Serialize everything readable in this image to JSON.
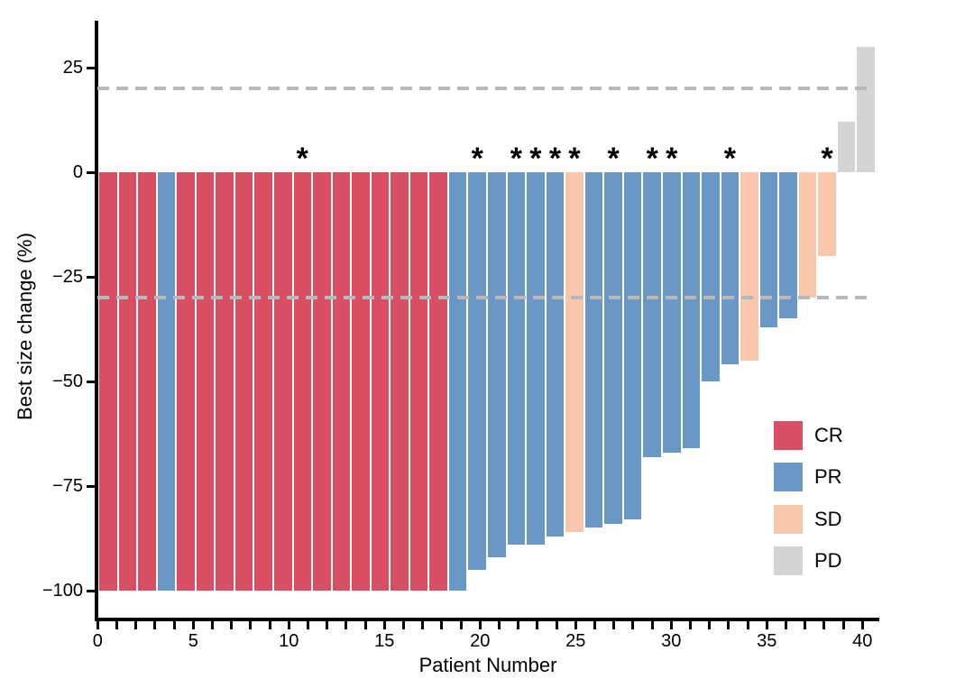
{
  "figure": {
    "background_color": "#ffffff",
    "text_color": "#000000"
  },
  "chart_data": {
    "type": "bar",
    "variant": "waterfall",
    "title": "",
    "xlabel": "Patient Number",
    "ylabel": "Best size change (%)",
    "xlim": [
      0,
      40.8
    ],
    "ylim": [
      -107,
      36
    ],
    "grid": false,
    "x_tick_values": [
      0,
      5,
      10,
      15,
      20,
      25,
      30,
      35,
      40
    ],
    "x_tick_labels": [
      "0",
      "5",
      "10",
      "15",
      "20",
      "25",
      "30",
      "35",
      "40"
    ],
    "x_minor_tick_step": 1,
    "y_tick_values": [
      25,
      0,
      -25,
      -50,
      -75,
      -100
    ],
    "y_tick_labels": [
      "25",
      "0",
      "−25",
      "−50",
      "−75",
      "−100"
    ],
    "reference_lines": [
      {
        "name": "upper",
        "y": 20,
        "style": "dashed",
        "color": "#b8b8b8"
      },
      {
        "name": "lower",
        "y": -30,
        "style": "dashed",
        "color": "#b8b8b8"
      }
    ],
    "legend": {
      "position": "right-middle",
      "entries": [
        {
          "label": "CR",
          "color": "#d84e62"
        },
        {
          "label": "PR",
          "color": "#6997c6"
        },
        {
          "label": "SD",
          "color": "#f8c7ab"
        },
        {
          "label": "PD",
          "color": "#d4d4d4"
        }
      ]
    },
    "annotation_symbol": "*",
    "starred_patients": [
      11,
      20,
      22,
      23,
      24,
      25,
      27,
      29,
      30,
      33,
      38
    ],
    "patients": [
      {
        "patient": 1,
        "value": -100,
        "response": "CR",
        "starred": false
      },
      {
        "patient": 2,
        "value": -100,
        "response": "CR",
        "starred": false
      },
      {
        "patient": 3,
        "value": -100,
        "response": "CR",
        "starred": false
      },
      {
        "patient": 4,
        "value": -100,
        "response": "PR",
        "starred": false
      },
      {
        "patient": 5,
        "value": -100,
        "response": "CR",
        "starred": false
      },
      {
        "patient": 6,
        "value": -100,
        "response": "CR",
        "starred": false
      },
      {
        "patient": 7,
        "value": -100,
        "response": "CR",
        "starred": false
      },
      {
        "patient": 8,
        "value": -100,
        "response": "CR",
        "starred": false
      },
      {
        "patient": 9,
        "value": -100,
        "response": "CR",
        "starred": false
      },
      {
        "patient": 10,
        "value": -100,
        "response": "CR",
        "starred": false
      },
      {
        "patient": 11,
        "value": -100,
        "response": "CR",
        "starred": true
      },
      {
        "patient": 12,
        "value": -100,
        "response": "CR",
        "starred": false
      },
      {
        "patient": 13,
        "value": -100,
        "response": "CR",
        "starred": false
      },
      {
        "patient": 14,
        "value": -100,
        "response": "CR",
        "starred": false
      },
      {
        "patient": 15,
        "value": -100,
        "response": "CR",
        "starred": false
      },
      {
        "patient": 16,
        "value": -100,
        "response": "CR",
        "starred": false
      },
      {
        "patient": 17,
        "value": -100,
        "response": "CR",
        "starred": false
      },
      {
        "patient": 18,
        "value": -100,
        "response": "CR",
        "starred": false
      },
      {
        "patient": 19,
        "value": -100,
        "response": "PR",
        "starred": false
      },
      {
        "patient": 20,
        "value": -95,
        "response": "PR",
        "starred": true
      },
      {
        "patient": 21,
        "value": -92,
        "response": "PR",
        "starred": false
      },
      {
        "patient": 22,
        "value": -89,
        "response": "PR",
        "starred": true
      },
      {
        "patient": 23,
        "value": -89,
        "response": "PR",
        "starred": true
      },
      {
        "patient": 24,
        "value": -87,
        "response": "PR",
        "starred": true
      },
      {
        "patient": 25,
        "value": -86,
        "response": "SD",
        "starred": true
      },
      {
        "patient": 26,
        "value": -85,
        "response": "PR",
        "starred": false
      },
      {
        "patient": 27,
        "value": -84,
        "response": "PR",
        "starred": true
      },
      {
        "patient": 28,
        "value": -83,
        "response": "PR",
        "starred": false
      },
      {
        "patient": 29,
        "value": -68,
        "response": "PR",
        "starred": true
      },
      {
        "patient": 30,
        "value": -67,
        "response": "PR",
        "starred": true
      },
      {
        "patient": 31,
        "value": -66,
        "response": "PR",
        "starred": false
      },
      {
        "patient": 32,
        "value": -50,
        "response": "PR",
        "starred": false
      },
      {
        "patient": 33,
        "value": -46,
        "response": "PR",
        "starred": true
      },
      {
        "patient": 34,
        "value": -45,
        "response": "SD",
        "starred": false
      },
      {
        "patient": 35,
        "value": -37,
        "response": "PR",
        "starred": false
      },
      {
        "patient": 36,
        "value": -35,
        "response": "PR",
        "starred": false
      },
      {
        "patient": 37,
        "value": -30,
        "response": "SD",
        "starred": false
      },
      {
        "patient": 38,
        "value": -20,
        "response": "SD",
        "starred": true
      },
      {
        "patient": 39,
        "value": 12,
        "response": "PD",
        "starred": false
      },
      {
        "patient": 40,
        "value": 30,
        "response": "PD",
        "starred": false
      }
    ]
  }
}
